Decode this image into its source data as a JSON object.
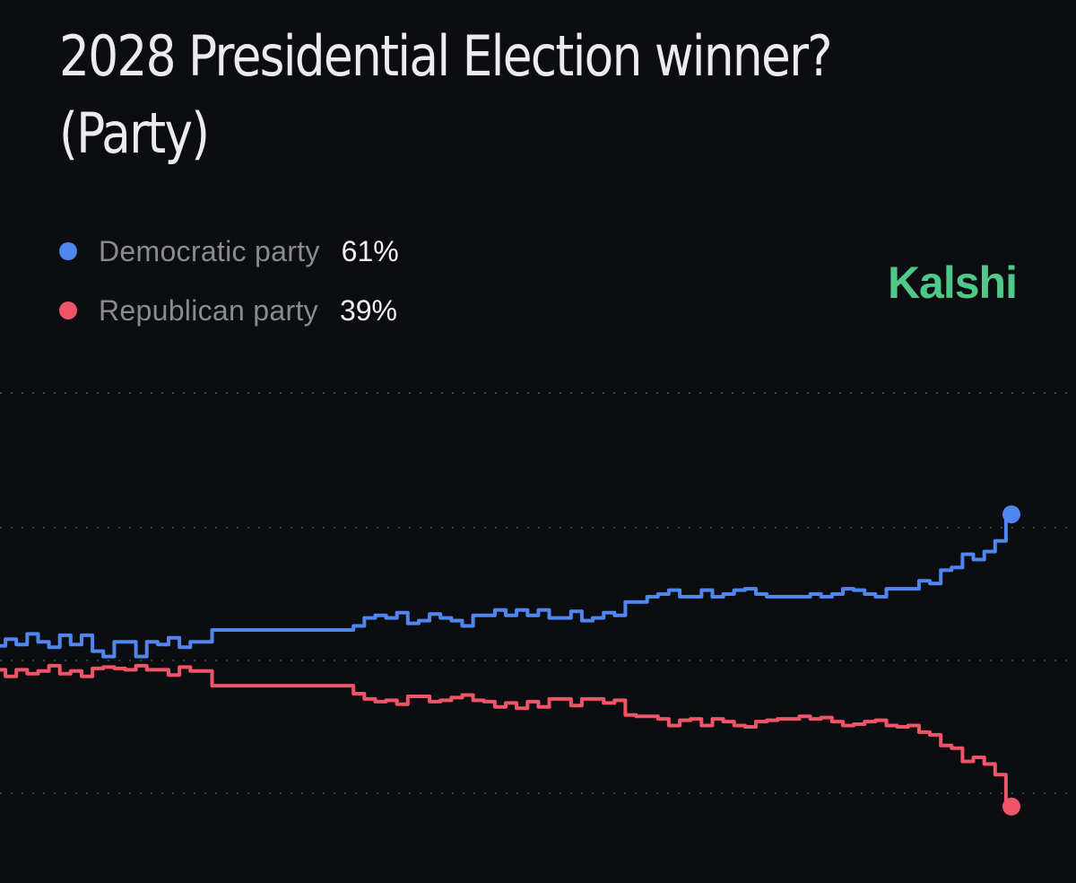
{
  "title": "2028 Presidential Election winner? (Party)",
  "brand": {
    "name": "Kalshi",
    "color": "#4fc88a"
  },
  "legend": [
    {
      "name": "Democratic party",
      "value": "61%",
      "color": "#4f86f0"
    },
    {
      "name": "Republican party",
      "value": "39%",
      "color": "#ef5468"
    }
  ],
  "chart_data": {
    "type": "line",
    "ylim": [
      35,
      65
    ],
    "grid": true,
    "gridlines": [
      40,
      50,
      60
    ],
    "legend_position": "top-left",
    "series": [
      {
        "name": "Democratic party",
        "color": "#4f86f0",
        "values": [
          51.1,
          51.6,
          51.2,
          52.0,
          51.4,
          51.0,
          51.9,
          51.2,
          51.9,
          50.7,
          50.3,
          51.4,
          51.4,
          50.3,
          51.4,
          51.2,
          51.7,
          51.0,
          51.4,
          51.4,
          52.3,
          52.3,
          52.3,
          52.3,
          52.3,
          52.3,
          52.3,
          52.3,
          52.3,
          52.3,
          52.3,
          52.3,
          52.3,
          52.6,
          53.2,
          53.4,
          53.2,
          53.6,
          52.8,
          53.0,
          53.5,
          53.2,
          53.0,
          52.6,
          53.4,
          53.4,
          53.8,
          53.4,
          53.8,
          53.4,
          53.8,
          53.2,
          53.2,
          53.7,
          53.0,
          53.2,
          53.6,
          53.4,
          54.4,
          54.4,
          54.8,
          55.0,
          55.3,
          54.8,
          54.8,
          55.3,
          54.8,
          55.0,
          55.3,
          55.4,
          55.0,
          54.8,
          54.8,
          54.8,
          54.8,
          55.0,
          54.8,
          55.0,
          55.4,
          55.3,
          55.0,
          54.8,
          55.4,
          55.4,
          55.4,
          56.0,
          55.8,
          56.8,
          57.0,
          58.0,
          57.6,
          58.2,
          59.0,
          61.0
        ]
      },
      {
        "name": "Republican party",
        "color": "#ef5468",
        "values": [
          49.3,
          48.8,
          49.3,
          49.0,
          49.2,
          49.6,
          49.0,
          49.2,
          48.8,
          49.4,
          49.5,
          49.4,
          49.3,
          49.6,
          49.3,
          49.3,
          48.9,
          49.5,
          49.2,
          49.2,
          48.1,
          48.1,
          48.1,
          48.1,
          48.1,
          48.1,
          48.1,
          48.1,
          48.1,
          48.1,
          48.1,
          48.1,
          48.1,
          47.5,
          47.1,
          46.9,
          47.0,
          46.7,
          47.3,
          47.3,
          46.9,
          47.0,
          47.2,
          47.4,
          47.0,
          46.9,
          46.5,
          46.8,
          46.4,
          46.9,
          46.5,
          47.1,
          47.1,
          46.6,
          47.1,
          47.1,
          46.8,
          47.0,
          45.9,
          45.8,
          45.8,
          45.6,
          45.1,
          45.5,
          45.6,
          45.1,
          45.6,
          45.4,
          45.1,
          45.0,
          45.4,
          45.5,
          45.6,
          45.6,
          45.8,
          45.6,
          45.7,
          45.4,
          45.1,
          45.2,
          45.4,
          45.5,
          45.1,
          45.0,
          45.1,
          44.6,
          44.4,
          43.6,
          43.4,
          42.4,
          42.7,
          42.2,
          41.4,
          39.0
        ]
      }
    ]
  }
}
